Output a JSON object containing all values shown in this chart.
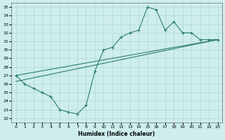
{
  "bg_color": "#cdeeed",
  "line_color": "#2d7d6d",
  "grid_color": "#b0d8d0",
  "xlabel": "Humidex (Indice chaleur)",
  "xlim": [
    -0.5,
    23.5
  ],
  "ylim": [
    21.5,
    35.5
  ],
  "xticks": [
    0,
    1,
    2,
    3,
    4,
    5,
    6,
    7,
    8,
    9,
    10,
    11,
    12,
    13,
    14,
    15,
    16,
    17,
    18,
    19,
    20,
    21,
    22,
    23
  ],
  "yticks": [
    22,
    23,
    24,
    25,
    26,
    27,
    28,
    29,
    30,
    31,
    32,
    33,
    34,
    35
  ],
  "curve_x": [
    0,
    1,
    2,
    3,
    4,
    5,
    6,
    7,
    8,
    9,
    10,
    11,
    12,
    13,
    14,
    15,
    16,
    17,
    18,
    19,
    20,
    21,
    22,
    23
  ],
  "curve_y": [
    27,
    26,
    25.5,
    25,
    24.5,
    23,
    22.7,
    22.5,
    23.5,
    27.5,
    30,
    30.3,
    31.5,
    32,
    32.3,
    35,
    34.7,
    32.3,
    33.3,
    32,
    32,
    31.2,
    31.2,
    31.2
  ],
  "line1_x": [
    0,
    23
  ],
  "line1_y": [
    27.0,
    31.2
  ],
  "line2_x": [
    0,
    23
  ],
  "line2_y": [
    26.3,
    31.2
  ]
}
